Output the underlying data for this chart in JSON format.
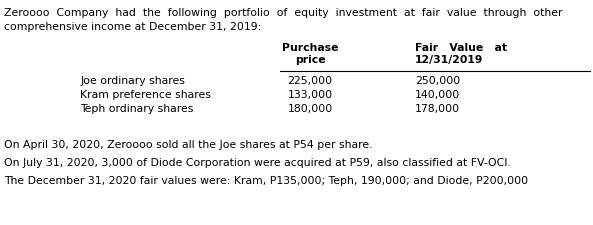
{
  "intro_line1": "Zeroooo  Company  had  the  following  portfolio  of  equity  investment  at  fair  value  through  other",
  "intro_line2": "comprehensive income at December 31, 2019:",
  "col_header1_line1": "Purchase",
  "col_header1_line2": "price",
  "col_header2_line1": "Fair   Value   at",
  "col_header2_line2": "12/31/2019",
  "rows": [
    {
      "label": "Joe ordinary shares",
      "purchase": "225,000",
      "fair_value": "250,000"
    },
    {
      "label": "Kram preference shares",
      "purchase": "133,000",
      "fair_value": "140,000"
    },
    {
      "label": "Teph ordinary shares",
      "purchase": "180,000",
      "fair_value": "178,000"
    }
  ],
  "note1": "On April 30, 2020, Zeroooo sold all the Joe shares at P54 per share.",
  "note2": "On July 31, 2020, 3,000 of Diode Corporation were acquired at P59, also classified at FV-OCI.",
  "note3": "The December 31, 2020 fair values were: Kram, P135,000; Teph, 190,000; and Diode, P200,000",
  "bg_color": "#ffffff",
  "text_color": "#000000",
  "font_size": 7.8,
  "bold_font_size": 7.8,
  "fig_width": 5.93,
  "fig_height": 2.25,
  "dpi": 100
}
